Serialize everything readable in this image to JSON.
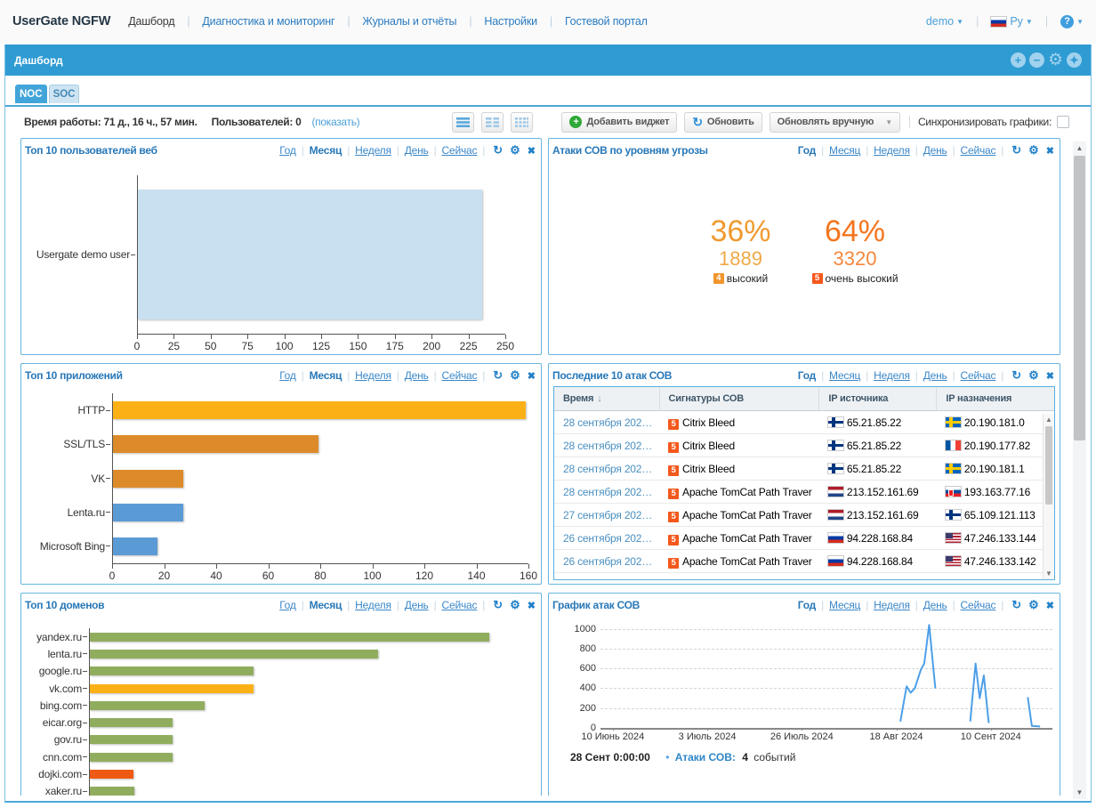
{
  "header": {
    "brand": "UserGate NGFW",
    "nav": [
      {
        "label": "Дашборд",
        "active": true
      },
      {
        "label": "Диагностика и мониторинг",
        "active": false
      },
      {
        "label": "Журналы и отчёты",
        "active": false
      },
      {
        "label": "Настройки",
        "active": false
      },
      {
        "label": "Гостевой портал",
        "active": false
      }
    ],
    "user_menu": "demo",
    "language": "Ру",
    "language_flag": "ru"
  },
  "titlebar": {
    "title": "Дашборд"
  },
  "tabs": [
    {
      "label": "NOC",
      "active": true
    },
    {
      "label": "SOC",
      "active": false
    }
  ],
  "toolbar": {
    "uptime_label": "Время работы:",
    "uptime_value": "71 д., 16 ч., 57 мин.",
    "users_label": "Пользователей:",
    "users_value": "0",
    "show_link": "(показать)",
    "add_widget_label": "Добавить виджет",
    "refresh_label": "Обновить",
    "refresh_mode_label": "Обновлять вручную",
    "sync_label": "Синхронизировать графики:",
    "sync_checked": false
  },
  "period_options": [
    "Год",
    "Месяц",
    "Неделя",
    "День",
    "Сейчас"
  ],
  "colors": {
    "accent_blue": "#2f9bd3",
    "widget_border": "#66b5e0",
    "link_blue": "#3a87c8"
  },
  "widgets": {
    "top_web_users": {
      "title": "Топ 10 пользователей веб",
      "active_period": "Месяц",
      "chart_data": {
        "type": "bar",
        "orientation": "horizontal",
        "categories": [
          "Usergate demo user"
        ],
        "values": [
          234
        ],
        "bar_colors": [
          "#c9e0f0"
        ],
        "xlim": [
          0,
          250
        ],
        "xticks": [
          0,
          25,
          50,
          75,
          100,
          125,
          150,
          175,
          200,
          225,
          250
        ],
        "xtick_labels_visible": true
      }
    },
    "ips_attacks_by_level": {
      "title": "Атаки СОВ по уровням угрозы",
      "active_period": "Год",
      "stats": [
        {
          "percent": "36%",
          "count": "1889",
          "severity": "4",
          "label": "высокий",
          "percent_color": "#f09a30",
          "count_color": "#f0a848",
          "badge_color": "#f0952c"
        },
        {
          "percent": "64%",
          "count": "3320",
          "severity": "5",
          "label": "очень высокий",
          "percent_color": "#f4751e",
          "count_color": "#f4883c",
          "badge_color": "#f4581c"
        }
      ]
    },
    "top_apps": {
      "title": "Топ 10 приложений",
      "active_period": "Месяц",
      "chart_data": {
        "type": "bar",
        "orientation": "horizontal",
        "categories": [
          "HTTP",
          "SSL/TLS",
          "VK",
          "Lenta.ru",
          "Microsoft Bing"
        ],
        "values": [
          159,
          79,
          27,
          27,
          17
        ],
        "bar_colors": [
          "#fbb116",
          "#dd8b2a",
          "#dd8b2a",
          "#5b9bd5",
          "#5b9bd5"
        ],
        "xlim": [
          0,
          160
        ],
        "xticks": [
          0,
          20,
          40,
          60,
          80,
          100,
          120,
          140,
          160
        ],
        "xtick_labels_visible": true
      }
    },
    "last_attacks": {
      "title": "Последние 10 атак СОВ",
      "active_period": "Год",
      "columns": [
        "Время",
        "Сигнатуры СОВ",
        "IP источника",
        "IP назначения"
      ],
      "sort_column": "Время",
      "rows": [
        {
          "time": "28 сентября 202…",
          "severity": "5",
          "signature": "Citrix Bleed",
          "src_country": "fi",
          "src_ip": "65.21.85.22",
          "dst_country": "se",
          "dst_ip": "20.190.181.0"
        },
        {
          "time": "28 сентября 202…",
          "severity": "5",
          "signature": "Citrix Bleed",
          "src_country": "fi",
          "src_ip": "65.21.85.22",
          "dst_country": "fr",
          "dst_ip": "20.190.177.82"
        },
        {
          "time": "28 сентября 202…",
          "severity": "5",
          "signature": "Citrix Bleed",
          "src_country": "fi",
          "src_ip": "65.21.85.22",
          "dst_country": "se",
          "dst_ip": "20.190.181.1"
        },
        {
          "time": "28 сентября 202…",
          "severity": "5",
          "signature": "Apache TomCat Path Traver",
          "src_country": "nl",
          "src_ip": "213.152.161.69",
          "dst_country": "sk",
          "dst_ip": "193.163.77.16"
        },
        {
          "time": "27 сентября 202…",
          "severity": "5",
          "signature": "Apache TomCat Path Traver",
          "src_country": "nl",
          "src_ip": "213.152.161.69",
          "dst_country": "fi",
          "dst_ip": "65.109.121.113"
        },
        {
          "time": "26 сентября 202…",
          "severity": "5",
          "signature": "Apache TomCat Path Traver",
          "src_country": "ru",
          "src_ip": "94.228.168.84",
          "dst_country": "us",
          "dst_ip": "47.246.133.144"
        },
        {
          "time": "26 сентября 202…",
          "severity": "5",
          "signature": "Apache TomCat Path Traver",
          "src_country": "ru",
          "src_ip": "94.228.168.84",
          "dst_country": "us",
          "dst_ip": "47.246.133.142"
        }
      ]
    },
    "top_domains": {
      "title": "Топ 10 доменов",
      "active_period": "Месяц",
      "chart_data": {
        "type": "bar",
        "orientation": "horizontal",
        "categories": [
          "yandex.ru",
          "lenta.ru",
          "google.ru",
          "vk.com",
          "bing.com",
          "eicar.org",
          "gov.ru",
          "cnn.com",
          "dojki.com",
          "xaker.ru"
        ],
        "values": [
          645,
          465,
          265,
          265,
          185,
          133,
          134,
          134,
          71,
          72
        ],
        "bar_colors": [
          "#90ad5e",
          "#90ad5e",
          "#90ad5e",
          "#fbb116",
          "#90ad5e",
          "#90ad5e",
          "#90ad5e",
          "#90ad5e",
          "#ee5a13",
          "#90ad5e"
        ],
        "xlim": [
          0,
          700
        ],
        "xticks": [
          0,
          100,
          200,
          300,
          400,
          500,
          600,
          700
        ],
        "xtick_labels_visible": false
      }
    },
    "attack_graph": {
      "title": "График атак СОВ",
      "active_period": "Год",
      "chart_data": {
        "type": "line",
        "series_name": "Атаки СОВ",
        "line_color": "#4d9fe8",
        "ylim": [
          0,
          1000
        ],
        "yticks": [
          0,
          200,
          400,
          600,
          800,
          1000
        ],
        "x_domain_days": [
          -3,
          107
        ],
        "xticks": [
          {
            "day": 0,
            "label": "10 Июнь 2024"
          },
          {
            "day": 23,
            "label": "3 Июль 2024"
          },
          {
            "day": 46,
            "label": "26 Июль 2024"
          },
          {
            "day": 69,
            "label": "18 Авг 2024"
          },
          {
            "day": 92,
            "label": "10 Сент 2024"
          }
        ],
        "segments": [
          [
            [
              70,
              65
            ],
            [
              71.5,
              420
            ],
            [
              72.5,
              355
            ],
            [
              73.5,
              400
            ],
            [
              75,
              590
            ],
            [
              75.8,
              650
            ],
            [
              77,
              1040
            ],
            [
              78.5,
              400
            ]
          ],
          [
            [
              87,
              65
            ],
            [
              88.3,
              650
            ],
            [
              89.3,
              300
            ],
            [
              90.3,
              530
            ],
            [
              91.5,
              50
            ]
          ],
          [
            [
              101,
              310
            ],
            [
              102,
              20
            ],
            [
              104,
              15
            ]
          ]
        ]
      },
      "footer": {
        "timestamp": "28 Сент 0:00:00",
        "series_label": "Атаки СОВ:",
        "events_count": "4",
        "events_suffix": "событий"
      }
    }
  }
}
